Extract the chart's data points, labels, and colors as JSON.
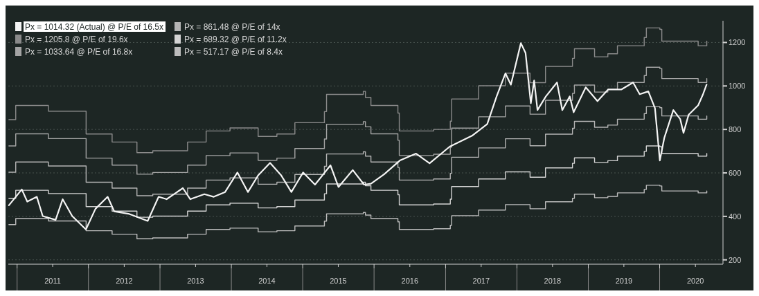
{
  "chart_data": {
    "type": "line",
    "xlim": [
      "2010-11-17",
      "2020-11-20"
    ],
    "ylim": [
      180,
      1300
    ],
    "yticks": [
      200,
      400,
      600,
      800,
      1000,
      1200
    ],
    "xticks": [
      {
        "value": "2011-01-01",
        "label": null
      },
      {
        "value": "2011-07-02",
        "label": "2011"
      },
      {
        "value": "2012-01-01",
        "label": null
      },
      {
        "value": "2012-07-02",
        "label": "2012"
      },
      {
        "value": "2013-01-01",
        "label": null
      },
      {
        "value": "2013-07-02",
        "label": "2013"
      },
      {
        "value": "2014-01-01",
        "label": null
      },
      {
        "value": "2014-07-02",
        "label": "2014"
      },
      {
        "value": "2015-01-01",
        "label": null
      },
      {
        "value": "2015-07-02",
        "label": "2015"
      },
      {
        "value": "2016-01-01",
        "label": null
      },
      {
        "value": "2016-07-02",
        "label": "2016"
      },
      {
        "value": "2017-01-01",
        "label": null
      },
      {
        "value": "2017-07-02",
        "label": "2017"
      },
      {
        "value": "2018-01-01",
        "label": null
      },
      {
        "value": "2018-07-02",
        "label": "2018"
      },
      {
        "value": "2019-01-01",
        "label": null
      },
      {
        "value": "2019-07-02",
        "label": "2019"
      },
      {
        "value": "2020-01-01",
        "label": null
      },
      {
        "value": "2020-07-02",
        "label": "2020"
      }
    ],
    "grid": "y",
    "legend": "top left",
    "line_style": "solid",
    "marker": "none",
    "series": [
      {
        "name": "Px = 1014.32 (Actual) @ P/E of 16.5x",
        "color": "#f4f4f4",
        "x": [
          "2010-11-20",
          "2011-01-25",
          "2011-02-22",
          "2011-04-12",
          "2011-05-12",
          "2011-07-17",
          "2011-08-22",
          "2011-10-10",
          "2011-12-19",
          "2012-02-06",
          "2012-04-08",
          "2012-05-12",
          "2012-07-24",
          "2012-10-30",
          "2012-12-25",
          "2013-02-04",
          "2013-04-28",
          "2013-06-05",
          "2013-08-16",
          "2013-10-03",
          "2013-11-30",
          "2014-02-01",
          "2014-03-27",
          "2014-05-19",
          "2014-07-18",
          "2014-09-12",
          "2014-11-04",
          "2015-01-03",
          "2015-03-05",
          "2015-05-23",
          "2015-07-03",
          "2015-09-14",
          "2015-11-11",
          "2015-12-16",
          "2016-02-22",
          "2016-05-12",
          "2016-08-03",
          "2016-10-11",
          "2017-01-22",
          "2017-05-16",
          "2017-08-02",
          "2017-09-19",
          "2017-11-03",
          "2017-12-01",
          "2018-01-21",
          "2018-02-14",
          "2018-03-13",
          "2018-03-30",
          "2018-04-16",
          "2018-05-29",
          "2018-07-25",
          "2018-08-21",
          "2018-09-28",
          "2018-10-18",
          "2018-12-19",
          "2019-02-17",
          "2019-04-13",
          "2019-06-20",
          "2019-08-18",
          "2019-09-21",
          "2019-11-04",
          "2019-12-08",
          "2020-01-02",
          "2020-01-25",
          "2020-03-11",
          "2020-04-15",
          "2020-05-02",
          "2020-05-28",
          "2020-07-16",
          "2020-08-10",
          "2020-08-28"
        ],
        "values": [
          451,
          524,
          468,
          490,
          401,
          384,
          479,
          401,
          340,
          435,
          490,
          423,
          412,
          379,
          490,
          479,
          530,
          479,
          502,
          490,
          512,
          602,
          512,
          590,
          646,
          590,
          512,
          602,
          546,
          635,
          535,
          613,
          546,
          550,
          594,
          657,
          689,
          644,
          721,
          771,
          825,
          952,
          1058,
          1006,
          1197,
          1152,
          920,
          1025,
          889,
          952,
          1016,
          889,
          952,
          879,
          994,
          930,
          984,
          984,
          1016,
          962,
          975,
          898,
          657,
          762,
          889,
          848,
          784,
          867,
          911,
          962,
          1006
        ]
      },
      {
        "name": "Px = 1205.8 @ P/E of 19.6x",
        "color": "#8a8a8a",
        "type": "step",
        "values": [
          845,
          910,
          884,
          884,
          779,
          742,
          693,
          702,
          702,
          742,
          793,
          807,
          768,
          779,
          831,
          882,
          961,
          975,
          947,
          910,
          875,
          793,
          800,
          838,
          940,
          1001,
          1059,
          1015,
          1090,
          1127,
          1171,
          1134,
          1148,
          1185,
          1223,
          1267,
          1260,
          1206,
          1185,
          1206
        ]
      },
      {
        "name": "Px = 1033.64 @ P/E of 16.8x",
        "color": "#a4a4a4",
        "type": "step",
        "values": [
          724,
          780,
          758,
          758,
          668,
          636,
          594,
          602,
          602,
          636,
          680,
          692,
          658,
          668,
          712,
          756,
          824,
          836,
          812,
          780,
          750,
          680,
          686,
          718,
          806,
          858,
          908,
          870,
          934,
          966,
          1004,
          972,
          984,
          1016,
          1048,
          1086,
          1080,
          1034,
          1016,
          1034
        ]
      },
      {
        "name": "Px = 861.48 @ P/E of 14x",
        "color": "#b4b4b4",
        "type": "step",
        "values": [
          603,
          650,
          632,
          632,
          557,
          530,
          495,
          502,
          502,
          530,
          567,
          577,
          548,
          557,
          593,
          630,
          687,
          697,
          677,
          650,
          625,
          567,
          572,
          598,
          672,
          715,
          757,
          725,
          778,
          805,
          837,
          810,
          820,
          847,
          873,
          905,
          900,
          862,
          847,
          862
        ]
      },
      {
        "name": "Px = 689.32 @ P/E of 11.2x",
        "color": "#d4d4d4",
        "type": "step",
        "values": [
          483,
          520,
          505,
          505,
          445,
          424,
          396,
          401,
          401,
          424,
          453,
          461,
          439,
          445,
          475,
          504,
          549,
          557,
          541,
          520,
          500,
          453,
          457,
          479,
          537,
          572,
          605,
          580,
          623,
          644,
          669,
          648,
          656,
          677,
          699,
          724,
          720,
          689,
          677,
          689
        ]
      },
      {
        "name": "Px = 517.17 @ P/E of 8.4x",
        "color": "#bcbcbc",
        "type": "step",
        "values": [
          362,
          390,
          379,
          379,
          334,
          318,
          297,
          301,
          301,
          318,
          340,
          346,
          329,
          334,
          356,
          378,
          412,
          418,
          406,
          390,
          375,
          340,
          343,
          359,
          403,
          429,
          454,
          435,
          467,
          483,
          502,
          486,
          492,
          508,
          524,
          543,
          540,
          517,
          508,
          517
        ]
      }
    ],
    "x": [
      "2010-11-20",
      "2010-12-25",
      "2011-06-10",
      "2011-11-15",
      "2011-12-20",
      "2012-05-01",
      "2012-09-05",
      "2012-11-25",
      "2013-03-01",
      "2013-05-22",
      "2013-08-25",
      "2013-12-25",
      "2014-05-18",
      "2014-08-22",
      "2014-11-22",
      "2015-04-22",
      "2015-05-03",
      "2015-11-07",
      "2015-11-18",
      "2015-12-16",
      "2016-05-02",
      "2016-05-09",
      "2016-11-01",
      "2017-01-25",
      "2017-02-01",
      "2017-06-19",
      "2017-11-03",
      "2018-03-09",
      "2018-05-27",
      "2018-10-12",
      "2018-10-22",
      "2019-02-02",
      "2019-04-11",
      "2019-05-30",
      "2019-10-14",
      "2019-10-25",
      "2020-01-02",
      "2020-01-12",
      "2020-07-16",
      "2020-08-29"
    ]
  }
}
